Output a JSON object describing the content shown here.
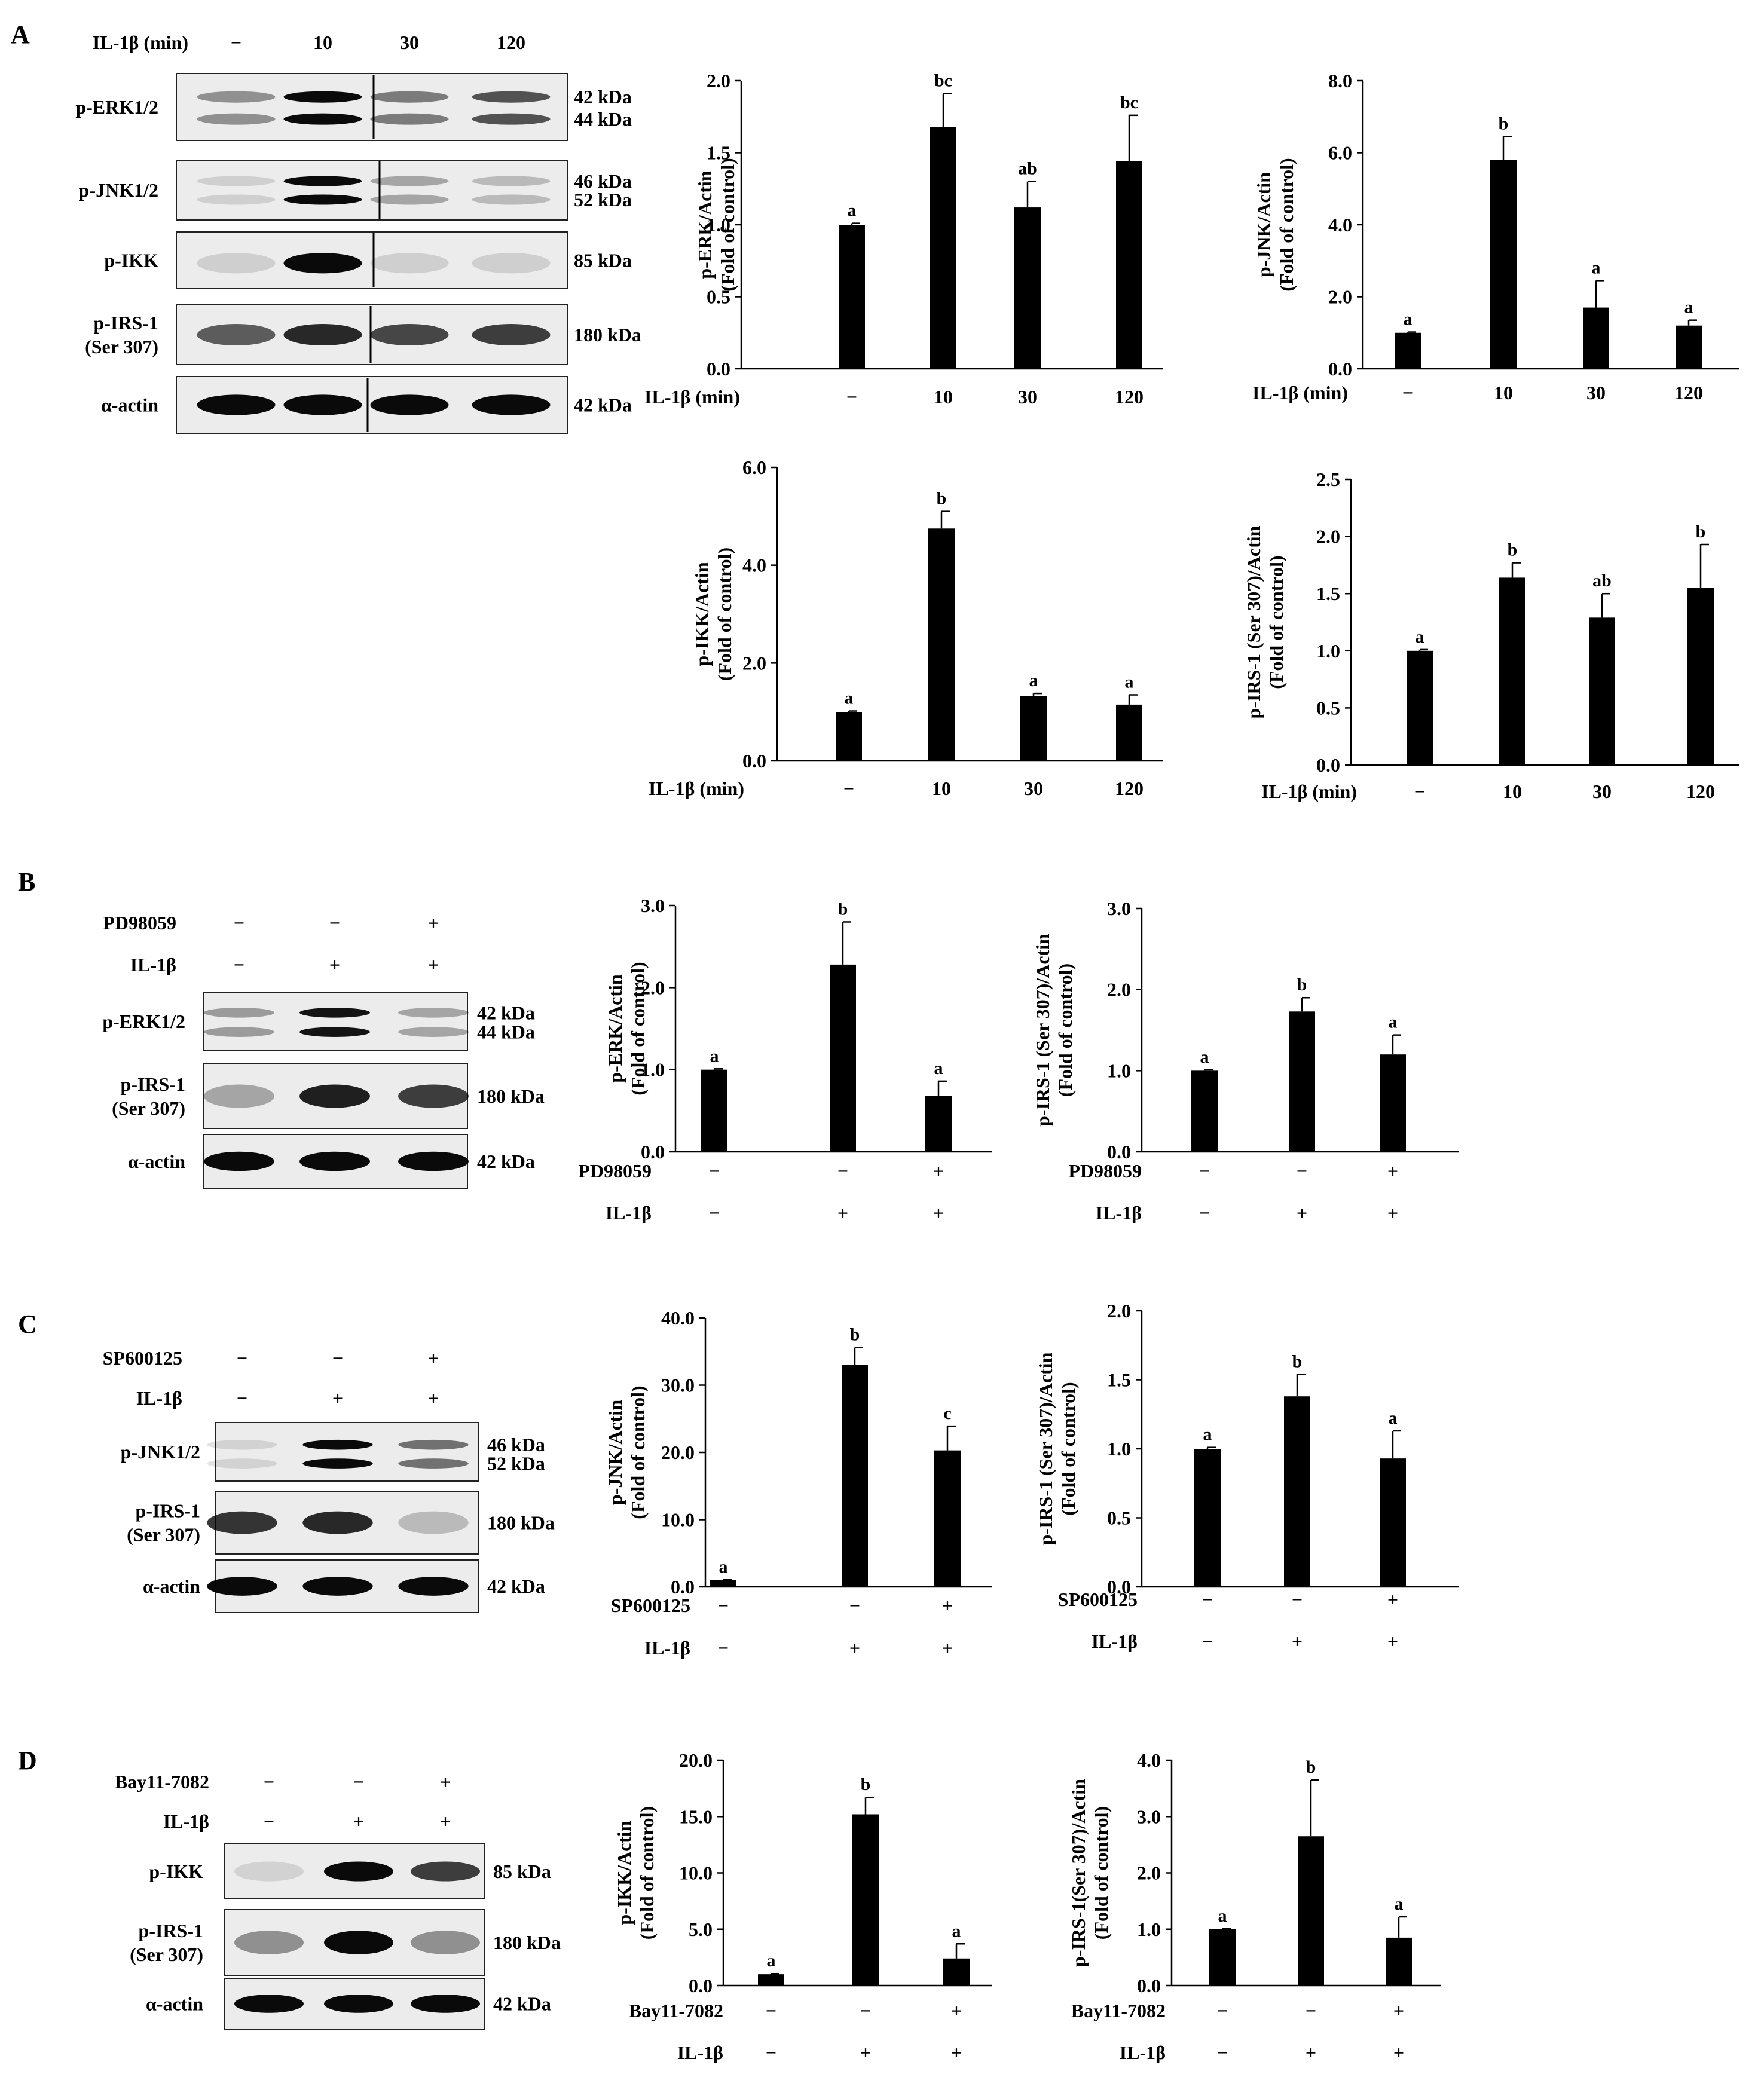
{
  "panels": [
    {
      "id": "A",
      "letter": "A",
      "blot": {
        "rows": [
          [
            "IL-1β (min)",
            "−",
            "10",
            "30",
            "120"
          ]
        ],
        "bands": [
          {
            "label": [
              "p-ERK1/2"
            ],
            "kda": [
              "42 kDa",
              "44 kDa"
            ]
          },
          {
            "label": [
              "p-JNK1/2"
            ],
            "kda": [
              "46 kDa",
              "52 kDa"
            ]
          },
          {
            "label": [
              "p-IKK"
            ],
            "kda": [
              "85 kDa"
            ]
          },
          {
            "label": [
              "p-IRS-1",
              "(Ser 307)"
            ],
            "kda": [
              "180 kDa"
            ]
          },
          {
            "label": [
              "α-actin"
            ],
            "kda": [
              "42 kDa"
            ]
          }
        ]
      }
    },
    {
      "id": "B",
      "letter": "B",
      "blot": {
        "rows": [
          [
            "PD98059",
            "−",
            "−",
            "+"
          ],
          [
            "IL-1β",
            "−",
            "+",
            "+"
          ]
        ],
        "bands": [
          {
            "label": [
              "p-ERK1/2"
            ],
            "kda": [
              "42 kDa",
              "44 kDa"
            ]
          },
          {
            "label": [
              "p-IRS-1",
              "(Ser 307)"
            ],
            "kda": [
              "180 kDa"
            ]
          },
          {
            "label": [
              "α-actin"
            ],
            "kda": [
              "42 kDa"
            ]
          }
        ]
      }
    },
    {
      "id": "C",
      "letter": "C",
      "blot": {
        "rows": [
          [
            "SP600125",
            "−",
            "−",
            "+"
          ],
          [
            "IL-1β",
            "−",
            "+",
            "+"
          ]
        ],
        "bands": [
          {
            "label": [
              "p-JNK1/2"
            ],
            "kda": [
              "46 kDa",
              "52 kDa"
            ]
          },
          {
            "label": [
              "p-IRS-1",
              "(Ser 307)"
            ],
            "kda": [
              "180 kDa"
            ]
          },
          {
            "label": [
              "α-actin"
            ],
            "kda": [
              "42 kDa"
            ]
          }
        ]
      }
    },
    {
      "id": "D",
      "letter": "D",
      "blot": {
        "rows": [
          [
            "Bay11-7082",
            "−",
            "−",
            "+"
          ],
          [
            "IL-1β",
            "−",
            "+",
            "+"
          ]
        ],
        "bands": [
          {
            "label": [
              "p-IKK"
            ],
            "kda": [
              "85 kDa"
            ]
          },
          {
            "label": [
              "p-IRS-1",
              "(Ser 307)"
            ],
            "kda": [
              "180 kDa"
            ]
          },
          {
            "label": [
              "α-actin"
            ],
            "kda": [
              "42 kDa"
            ]
          }
        ]
      }
    }
  ],
  "chart_data": [
    {
      "id": "A1",
      "type": "bar",
      "panel": "A",
      "ylabel": [
        "p-ERK/Actin",
        "(Fold of control)"
      ],
      "yticks": [
        "0.0",
        "0.5",
        "1.0",
        "1.5",
        "2.0"
      ],
      "ylim": [
        0,
        2.0
      ],
      "treatment_rows": [
        [
          "IL-1β (min)",
          "−",
          "10",
          "30",
          "120"
        ]
      ],
      "values": [
        1.0,
        1.68,
        1.12,
        1.44
      ],
      "errors": [
        0.01,
        0.23,
        0.18,
        0.32
      ],
      "letters": [
        "a",
        "bc",
        "ab",
        "bc"
      ]
    },
    {
      "id": "A2",
      "type": "bar",
      "panel": "A",
      "ylabel": [
        "p-JNK/Actin",
        "(Fold of control)"
      ],
      "yticks": [
        "0.0",
        "2.0",
        "4.0",
        "6.0",
        "8.0"
      ],
      "ylim": [
        0,
        8.0
      ],
      "treatment_rows": [
        [
          "IL-1β (min)",
          "−",
          "10",
          "30",
          "120"
        ]
      ],
      "values": [
        1.0,
        5.8,
        1.7,
        1.2
      ],
      "errors": [
        0.02,
        0.65,
        0.75,
        0.15
      ],
      "letters": [
        "a",
        "b",
        "a",
        "a"
      ]
    },
    {
      "id": "A3",
      "type": "bar",
      "panel": "A",
      "ylabel": [
        "p-IKK/Actin",
        "(Fold of control)"
      ],
      "yticks": [
        "0.0",
        "2.0",
        "4.0",
        "6.0"
      ],
      "ylim": [
        0,
        6.0
      ],
      "treatment_rows": [
        [
          "IL-1β (min)",
          "−",
          "10",
          "30",
          "120"
        ]
      ],
      "values": [
        1.0,
        4.75,
        1.33,
        1.15
      ],
      "errors": [
        0.02,
        0.35,
        0.05,
        0.2
      ],
      "letters": [
        "a",
        "b",
        "a",
        "a"
      ]
    },
    {
      "id": "A4",
      "type": "bar",
      "panel": "A",
      "ylabel": [
        "p-IRS-1 (Ser 307)/Actin",
        "(Fold of control)"
      ],
      "yticks": [
        "0.0",
        "0.5",
        "1.0",
        "1.5",
        "2.0",
        "2.5"
      ],
      "ylim": [
        0,
        2.5
      ],
      "treatment_rows": [
        [
          "IL-1β (min)",
          "−",
          "10",
          "30",
          "120"
        ]
      ],
      "values": [
        1.0,
        1.64,
        1.29,
        1.55
      ],
      "errors": [
        0.01,
        0.13,
        0.21,
        0.38
      ],
      "letters": [
        "a",
        "b",
        "ab",
        "b"
      ]
    },
    {
      "id": "B1",
      "type": "bar",
      "panel": "B",
      "ylabel": [
        "p-ERK/Actin",
        "(Fold of control)"
      ],
      "yticks": [
        "0.0",
        "1.0",
        "2.0",
        "3.0"
      ],
      "ylim": [
        0,
        3.0
      ],
      "treatment_rows": [
        [
          "PD98059",
          "−",
          "−",
          "+"
        ],
        [
          "IL-1β",
          "−",
          "+",
          "+"
        ]
      ],
      "values": [
        1.0,
        2.28,
        0.68
      ],
      "errors": [
        0.01,
        0.52,
        0.18
      ],
      "letters": [
        "a",
        "b",
        "a"
      ]
    },
    {
      "id": "B2",
      "type": "bar",
      "panel": "B",
      "ylabel": [
        "p-IRS-1 (Ser 307)/Actin",
        "(Fold of control)"
      ],
      "yticks": [
        "0.0",
        "1.0",
        "2.0",
        "3.0"
      ],
      "ylim": [
        0,
        3.0
      ],
      "treatment_rows": [
        [
          "PD98059",
          "−",
          "−",
          "+"
        ],
        [
          "IL-1β",
          "−",
          "+",
          "+"
        ]
      ],
      "values": [
        1.0,
        1.73,
        1.2
      ],
      "errors": [
        0.01,
        0.17,
        0.24
      ],
      "letters": [
        "a",
        "b",
        "a"
      ]
    },
    {
      "id": "C1",
      "type": "bar",
      "panel": "C",
      "ylabel": [
        "p-JNK/Actin",
        "(Fold of control)"
      ],
      "yticks": [
        "0.0",
        "10.0",
        "20.0",
        "30.0",
        "40.0"
      ],
      "ylim": [
        0,
        40.0
      ],
      "treatment_rows": [
        [
          "SP600125",
          "−",
          "−",
          "+"
        ],
        [
          "IL-1β",
          "−",
          "+",
          "+"
        ]
      ],
      "values": [
        1.0,
        33.0,
        20.3
      ],
      "errors": [
        0.05,
        2.6,
        3.6
      ],
      "letters": [
        "a",
        "b",
        "c"
      ]
    },
    {
      "id": "C2",
      "type": "bar",
      "panel": "C",
      "ylabel": [
        "p-IRS-1 (Ser 307)/Actin",
        "(Fold of control)"
      ],
      "yticks": [
        "0.0",
        "0.5",
        "1.0",
        "1.5",
        "2.0"
      ],
      "ylim": [
        0,
        2.0
      ],
      "treatment_rows": [
        [
          "SP600125",
          "−",
          "−",
          "+"
        ],
        [
          "IL-1β",
          "−",
          "+",
          "+"
        ]
      ],
      "values": [
        1.0,
        1.38,
        0.93
      ],
      "errors": [
        0.01,
        0.16,
        0.2
      ],
      "letters": [
        "a",
        "b",
        "a"
      ]
    },
    {
      "id": "D1",
      "type": "bar",
      "panel": "D",
      "ylabel": [
        "p-IKK/Actin",
        "(Fold of control)"
      ],
      "yticks": [
        "0.0",
        "5.0",
        "10.0",
        "15.0",
        "20.0"
      ],
      "ylim": [
        0,
        20.0
      ],
      "treatment_rows": [
        [
          "Bay11-7082",
          "−",
          "−",
          "+"
        ],
        [
          "IL-1β",
          "−",
          "+",
          "+"
        ]
      ],
      "values": [
        1.0,
        15.2,
        2.4
      ],
      "errors": [
        0.05,
        1.5,
        1.3
      ],
      "letters": [
        "a",
        "b",
        "a"
      ]
    },
    {
      "id": "D2",
      "type": "bar",
      "panel": "D",
      "ylabel": [
        "p-IRS-1(Ser 307)/Actin",
        "(Fold of control)"
      ],
      "yticks": [
        "0.0",
        "1.0",
        "2.0",
        "3.0",
        "4.0"
      ],
      "ylim": [
        0,
        4.0
      ],
      "treatment_rows": [
        [
          "Bay11-7082",
          "−",
          "−",
          "+"
        ],
        [
          "IL-1β",
          "−",
          "+",
          "+"
        ]
      ],
      "values": [
        1.0,
        2.65,
        0.85
      ],
      "errors": [
        0.01,
        1.0,
        0.37
      ],
      "letters": [
        "a",
        "b",
        "a"
      ]
    }
  ]
}
